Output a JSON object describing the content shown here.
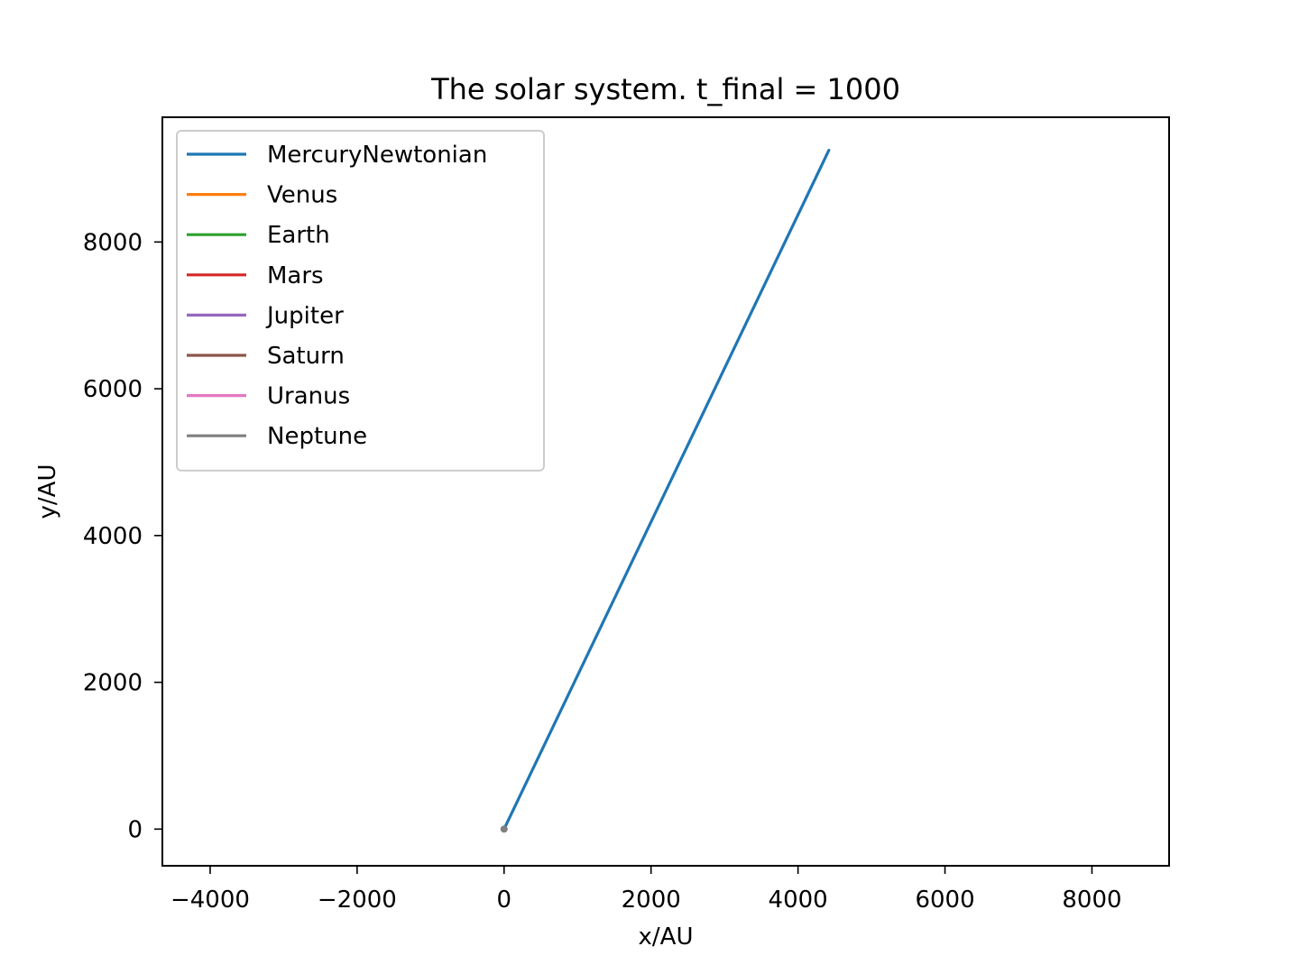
{
  "chart_data": {
    "type": "line",
    "title": "The solar system. t_final = 1000",
    "xlabel": "x/AU",
    "ylabel": "y/AU",
    "xlim": [
      -4650,
      9050
    ],
    "ylim": [
      -500,
      9700
    ],
    "xticks": [
      -4000,
      -2000,
      0,
      2000,
      4000,
      6000,
      8000
    ],
    "xtick_labels": [
      "−4000",
      "−2000",
      "0",
      "2000",
      "4000",
      "6000",
      "8000"
    ],
    "yticks": [
      0,
      2000,
      4000,
      6000,
      8000
    ],
    "ytick_labels": [
      "0",
      "2000",
      "4000",
      "6000",
      "8000"
    ],
    "grid": false,
    "legend_position": "top-left",
    "series": [
      {
        "name": "MercuryNewtonian",
        "color": "#1f77b4",
        "x": [
          0,
          4420
        ],
        "y": [
          0,
          9250
        ]
      },
      {
        "name": "Venus",
        "color": "#ff7f0e",
        "x": [
          0,
          0
        ],
        "y": [
          0,
          0
        ]
      },
      {
        "name": "Earth",
        "color": "#2ca02c",
        "x": [
          0,
          0
        ],
        "y": [
          0,
          0
        ]
      },
      {
        "name": "Mars",
        "color": "#d62728",
        "x": [
          0,
          0
        ],
        "y": [
          0,
          0
        ]
      },
      {
        "name": "Jupiter",
        "color": "#9467bd",
        "x": [
          0,
          0
        ],
        "y": [
          0,
          0
        ]
      },
      {
        "name": "Saturn",
        "color": "#8c564b",
        "x": [
          0,
          0
        ],
        "y": [
          0,
          0
        ]
      },
      {
        "name": "Uranus",
        "color": "#e377c2",
        "x": [
          0,
          0
        ],
        "y": [
          0,
          0
        ]
      },
      {
        "name": "Neptune",
        "color": "#7f7f7f",
        "x": [
          0,
          0
        ],
        "y": [
          0,
          0
        ]
      }
    ]
  }
}
